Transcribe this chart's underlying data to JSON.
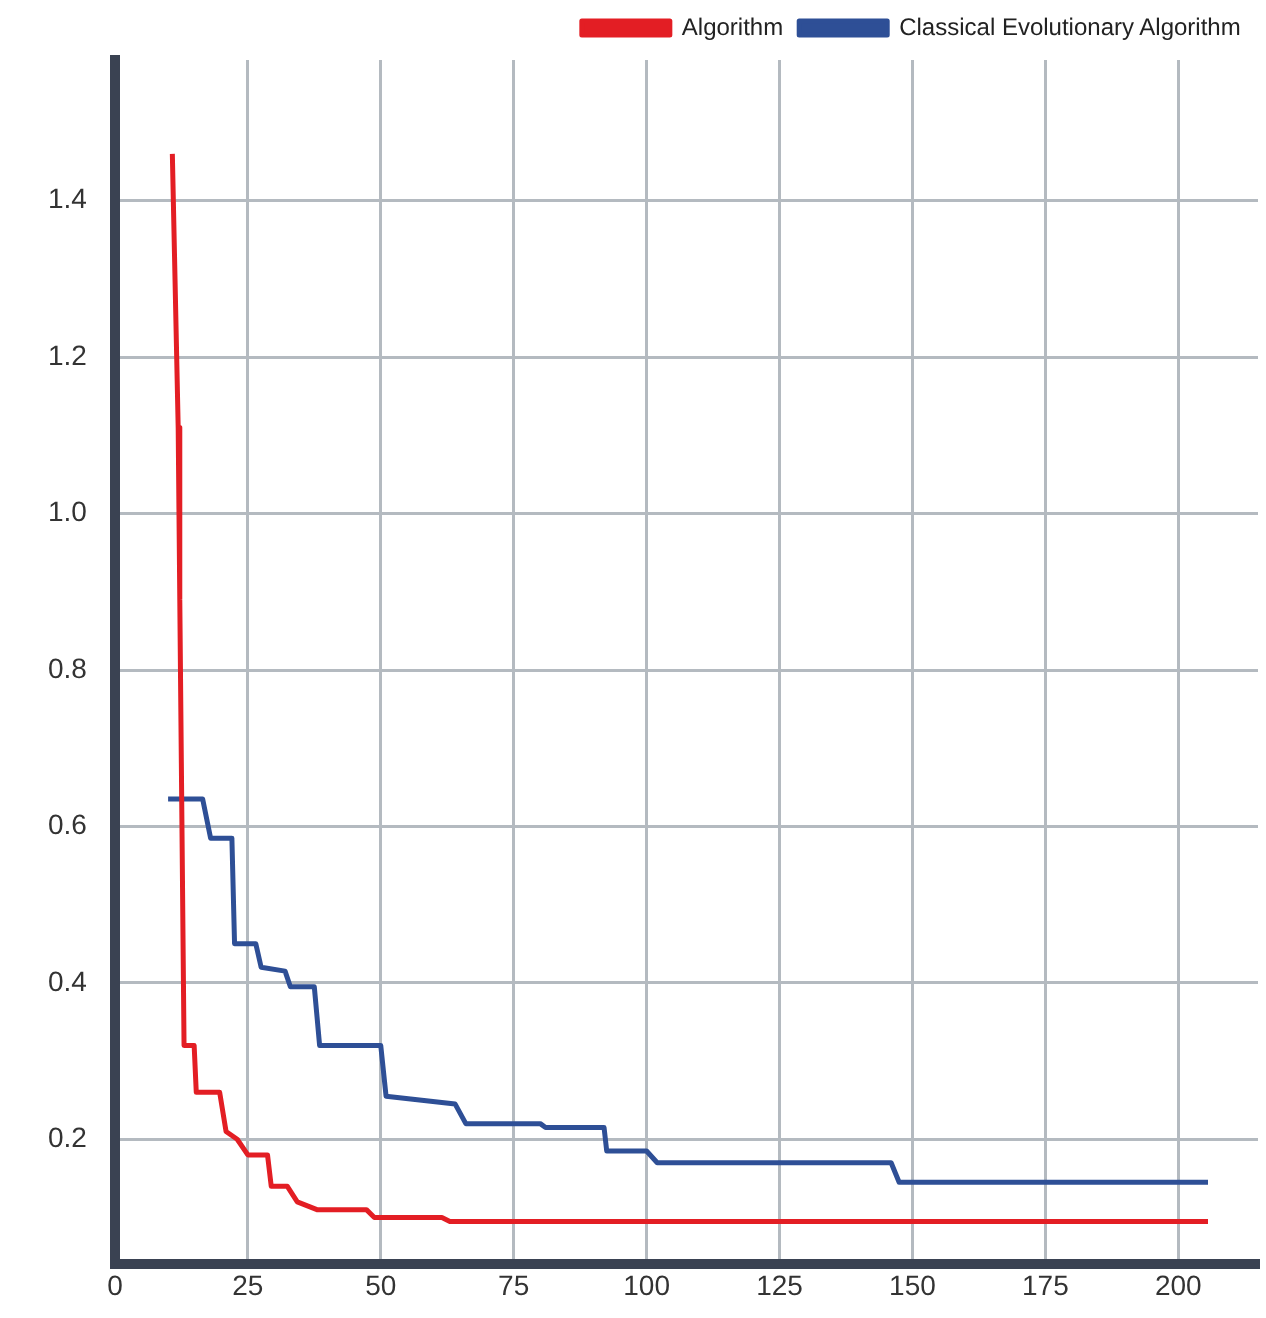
{
  "chart_data": {
    "type": "line",
    "xlim": [
      0,
      215
    ],
    "ylim": [
      0.04,
      1.58
    ],
    "xticks": [
      0,
      25,
      50,
      75,
      100,
      125,
      150,
      175,
      200
    ],
    "yticks": [
      0.2,
      0.4,
      0.6,
      0.8,
      {
        "value": 1.0,
        "label": "1.0"
      },
      1.2,
      1.4
    ],
    "grid": true,
    "legend": "top right",
    "marker": "none",
    "line_style": "solid",
    "series": [
      {
        "name": "Algorithm",
        "color": "#e31e24",
        "x": [
          10.8,
          11.9,
          12.2,
          13,
          14.9,
          15.3,
          19.7,
          20.9,
          23,
          25,
          28.7,
          29.4,
          32.4,
          34.3,
          38,
          47.3,
          48.8,
          61.5,
          63,
          205.6
        ],
        "values": [
          1.46,
          1.11,
          0.89,
          0.32,
          0.32,
          0.26,
          0.26,
          0.21,
          0.2,
          0.18,
          0.18,
          0.14,
          0.14,
          0.12,
          0.11,
          0.11,
          0.1,
          0.1,
          0.095,
          0.095
        ]
      },
      {
        "name": "Classical Evolutionary Algorithm",
        "color": "#2e4f96",
        "x": [
          10,
          16.5,
          18,
          22,
          22.5,
          26.5,
          27.5,
          32,
          33,
          37.5,
          38.5,
          50,
          51,
          64,
          66,
          80,
          81,
          92,
          92.5,
          100,
          102,
          146,
          147.5,
          205.6
        ],
        "values": [
          0.635,
          0.635,
          0.585,
          0.585,
          0.45,
          0.45,
          0.42,
          0.415,
          0.395,
          0.395,
          0.32,
          0.32,
          0.255,
          0.245,
          0.22,
          0.22,
          0.215,
          0.215,
          0.185,
          0.185,
          0.17,
          0.17,
          0.145,
          0.145
        ]
      }
    ]
  }
}
